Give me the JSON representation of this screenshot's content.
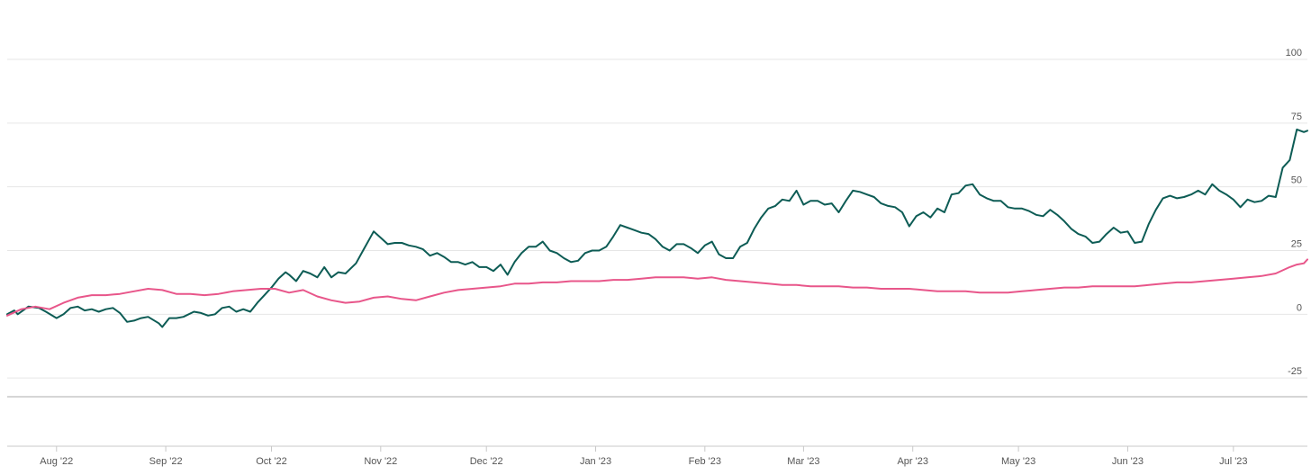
{
  "chart_data": {
    "type": "line",
    "grid": true,
    "ylim": [
      -32,
      112
    ],
    "y_ticks": [
      -25,
      0,
      25,
      50,
      75,
      100
    ],
    "y_tick_labels": [
      "-25",
      "0",
      "25",
      "50",
      "75",
      "100"
    ],
    "x_tick_labels": [
      "Aug '22",
      "Sep '22",
      "Oct '22",
      "Nov '22",
      "Dec '22",
      "Jan '23",
      "Feb '23",
      "Mar '23",
      "Apr '23",
      "May '23",
      "Jun '23",
      "Jul '23"
    ],
    "x_tick_dates": [
      "2022-08-01",
      "2022-09-01",
      "2022-10-01",
      "2022-11-01",
      "2022-12-01",
      "2023-01-01",
      "2023-02-01",
      "2023-03-01",
      "2023-04-01",
      "2023-05-01",
      "2023-06-01",
      "2023-07-01"
    ],
    "x_range": [
      "2022-07-18",
      "2023-07-22"
    ],
    "series": [
      {
        "color": "#0d5c55",
        "points": [
          [
            "2022-07-18",
            0
          ],
          [
            "2022-07-20",
            1.5
          ],
          [
            "2022-07-21",
            0
          ],
          [
            "2022-07-24",
            3
          ],
          [
            "2022-07-27",
            2.5
          ],
          [
            "2022-07-29",
            1
          ],
          [
            "2022-08-01",
            -1.5
          ],
          [
            "2022-08-03",
            0
          ],
          [
            "2022-08-05",
            2.5
          ],
          [
            "2022-08-07",
            3
          ],
          [
            "2022-08-09",
            1.5
          ],
          [
            "2022-08-11",
            2
          ],
          [
            "2022-08-13",
            1
          ],
          [
            "2022-08-15",
            2
          ],
          [
            "2022-08-17",
            2.5
          ],
          [
            "2022-08-19",
            0.5
          ],
          [
            "2022-08-21",
            -3
          ],
          [
            "2022-08-23",
            -2.5
          ],
          [
            "2022-08-25",
            -1.5
          ],
          [
            "2022-08-27",
            -1
          ],
          [
            "2022-08-30",
            -3.5
          ],
          [
            "2022-08-31",
            -5
          ],
          [
            "2022-09-02",
            -1.5
          ],
          [
            "2022-09-04",
            -1.5
          ],
          [
            "2022-09-06",
            -1
          ],
          [
            "2022-09-09",
            1
          ],
          [
            "2022-09-11",
            0.5
          ],
          [
            "2022-09-13",
            -0.5
          ],
          [
            "2022-09-15",
            0
          ],
          [
            "2022-09-17",
            2.5
          ],
          [
            "2022-09-19",
            3
          ],
          [
            "2022-09-21",
            1
          ],
          [
            "2022-09-23",
            2
          ],
          [
            "2022-09-25",
            1
          ],
          [
            "2022-09-27",
            4.5
          ],
          [
            "2022-09-29",
            7.5
          ],
          [
            "2022-10-01",
            10.5
          ],
          [
            "2022-10-03",
            14
          ],
          [
            "2022-10-05",
            16.5
          ],
          [
            "2022-10-06",
            15.5
          ],
          [
            "2022-10-08",
            13
          ],
          [
            "2022-10-10",
            17
          ],
          [
            "2022-10-12",
            16
          ],
          [
            "2022-10-14",
            14.5
          ],
          [
            "2022-10-16",
            18.5
          ],
          [
            "2022-10-18",
            14.5
          ],
          [
            "2022-10-20",
            16.5
          ],
          [
            "2022-10-22",
            16
          ],
          [
            "2022-10-25",
            20
          ],
          [
            "2022-10-27",
            25
          ],
          [
            "2022-10-29",
            30
          ],
          [
            "2022-10-30",
            32.5
          ],
          [
            "2022-11-01",
            30
          ],
          [
            "2022-11-03",
            27.5
          ],
          [
            "2022-11-05",
            28
          ],
          [
            "2022-11-07",
            28
          ],
          [
            "2022-11-09",
            27
          ],
          [
            "2022-11-11",
            26.5
          ],
          [
            "2022-11-13",
            25.5
          ],
          [
            "2022-11-15",
            23
          ],
          [
            "2022-11-17",
            24
          ],
          [
            "2022-11-19",
            22.5
          ],
          [
            "2022-11-21",
            20.5
          ],
          [
            "2022-11-23",
            20.5
          ],
          [
            "2022-11-25",
            19.5
          ],
          [
            "2022-11-27",
            20.5
          ],
          [
            "2022-11-29",
            18.5
          ],
          [
            "2022-12-01",
            18.5
          ],
          [
            "2022-12-03",
            17
          ],
          [
            "2022-12-05",
            19.5
          ],
          [
            "2022-12-07",
            15.5
          ],
          [
            "2022-12-09",
            20.5
          ],
          [
            "2022-12-11",
            24
          ],
          [
            "2022-12-13",
            26.5
          ],
          [
            "2022-12-15",
            26.5
          ],
          [
            "2022-12-17",
            28.5
          ],
          [
            "2022-12-19",
            25
          ],
          [
            "2022-12-21",
            24
          ],
          [
            "2022-12-23",
            22
          ],
          [
            "2022-12-25",
            20.5
          ],
          [
            "2022-12-27",
            21
          ],
          [
            "2022-12-29",
            24
          ],
          [
            "2022-12-31",
            25
          ],
          [
            "2023-01-02",
            25
          ],
          [
            "2023-01-04",
            26.5
          ],
          [
            "2023-01-06",
            30.5
          ],
          [
            "2023-01-08",
            35
          ],
          [
            "2023-01-10",
            34
          ],
          [
            "2023-01-12",
            33
          ],
          [
            "2023-01-14",
            32
          ],
          [
            "2023-01-16",
            31.5
          ],
          [
            "2023-01-18",
            29.5
          ],
          [
            "2023-01-20",
            26.5
          ],
          [
            "2023-01-22",
            25
          ],
          [
            "2023-01-24",
            27.5
          ],
          [
            "2023-01-26",
            27.5
          ],
          [
            "2023-01-28",
            26
          ],
          [
            "2023-01-30",
            24
          ],
          [
            "2023-02-01",
            27
          ],
          [
            "2023-02-03",
            28.5
          ],
          [
            "2023-02-05",
            23.5
          ],
          [
            "2023-02-07",
            22
          ],
          [
            "2023-02-09",
            22
          ],
          [
            "2023-02-11",
            26.5
          ],
          [
            "2023-02-13",
            28
          ],
          [
            "2023-02-15",
            33.5
          ],
          [
            "2023-02-17",
            38
          ],
          [
            "2023-02-19",
            41.5
          ],
          [
            "2023-02-21",
            42.5
          ],
          [
            "2023-02-23",
            45
          ],
          [
            "2023-02-25",
            44.5
          ],
          [
            "2023-02-27",
            48.5
          ],
          [
            "2023-03-01",
            43
          ],
          [
            "2023-03-03",
            44.5
          ],
          [
            "2023-03-05",
            44.5
          ],
          [
            "2023-03-07",
            43
          ],
          [
            "2023-03-09",
            43.5
          ],
          [
            "2023-03-11",
            40
          ],
          [
            "2023-03-13",
            44.5
          ],
          [
            "2023-03-15",
            48.5
          ],
          [
            "2023-03-17",
            48
          ],
          [
            "2023-03-19",
            47
          ],
          [
            "2023-03-21",
            46
          ],
          [
            "2023-03-23",
            43.5
          ],
          [
            "2023-03-25",
            42.5
          ],
          [
            "2023-03-27",
            42
          ],
          [
            "2023-03-29",
            40
          ],
          [
            "2023-03-31",
            34.5
          ],
          [
            "2023-04-02",
            38.5
          ],
          [
            "2023-04-04",
            40
          ],
          [
            "2023-04-06",
            38
          ],
          [
            "2023-04-08",
            41.5
          ],
          [
            "2023-04-10",
            40
          ],
          [
            "2023-04-12",
            47
          ],
          [
            "2023-04-14",
            47.5
          ],
          [
            "2023-04-16",
            50.5
          ],
          [
            "2023-04-18",
            51
          ],
          [
            "2023-04-20",
            47
          ],
          [
            "2023-04-22",
            45.5
          ],
          [
            "2023-04-24",
            44.5
          ],
          [
            "2023-04-26",
            44.5
          ],
          [
            "2023-04-28",
            42
          ],
          [
            "2023-04-30",
            41.5
          ],
          [
            "2023-05-02",
            41.5
          ],
          [
            "2023-05-04",
            40.5
          ],
          [
            "2023-05-06",
            39
          ],
          [
            "2023-05-08",
            38.5
          ],
          [
            "2023-05-10",
            41
          ],
          [
            "2023-05-12",
            39
          ],
          [
            "2023-05-14",
            36.5
          ],
          [
            "2023-05-16",
            33.5
          ],
          [
            "2023-05-18",
            31.5
          ],
          [
            "2023-05-20",
            30.5
          ],
          [
            "2023-05-22",
            28
          ],
          [
            "2023-05-24",
            28.5
          ],
          [
            "2023-05-26",
            31.5
          ],
          [
            "2023-05-28",
            34
          ],
          [
            "2023-05-30",
            32
          ],
          [
            "2023-06-01",
            32.5
          ],
          [
            "2023-06-03",
            28
          ],
          [
            "2023-06-05",
            28.5
          ],
          [
            "2023-06-07",
            35.5
          ],
          [
            "2023-06-09",
            41
          ],
          [
            "2023-06-11",
            45.5
          ],
          [
            "2023-06-13",
            46.5
          ],
          [
            "2023-06-15",
            45.5
          ],
          [
            "2023-06-17",
            46
          ],
          [
            "2023-06-19",
            47
          ],
          [
            "2023-06-21",
            48.5
          ],
          [
            "2023-06-23",
            47
          ],
          [
            "2023-06-25",
            51
          ],
          [
            "2023-06-27",
            48.5
          ],
          [
            "2023-06-29",
            47
          ],
          [
            "2023-07-01",
            45
          ],
          [
            "2023-07-03",
            42
          ],
          [
            "2023-07-05",
            45
          ],
          [
            "2023-07-07",
            44
          ],
          [
            "2023-07-09",
            44.5
          ],
          [
            "2023-07-11",
            46.5
          ],
          [
            "2023-07-13",
            46
          ],
          [
            "2023-07-15",
            57.5
          ],
          [
            "2023-07-17",
            60.5
          ],
          [
            "2023-07-19",
            72.5
          ],
          [
            "2023-07-21",
            71.5
          ],
          [
            "2023-07-22",
            72
          ]
        ]
      },
      {
        "color": "#e8568a",
        "points": [
          [
            "2022-07-18",
            -0.5
          ],
          [
            "2022-07-22",
            2
          ],
          [
            "2022-07-26",
            3
          ],
          [
            "2022-07-30",
            2
          ],
          [
            "2022-08-03",
            4.5
          ],
          [
            "2022-08-07",
            6.5
          ],
          [
            "2022-08-11",
            7.5
          ],
          [
            "2022-08-15",
            7.5
          ],
          [
            "2022-08-19",
            8
          ],
          [
            "2022-08-23",
            9
          ],
          [
            "2022-08-27",
            10
          ],
          [
            "2022-08-31",
            9.5
          ],
          [
            "2022-09-04",
            8
          ],
          [
            "2022-09-08",
            8
          ],
          [
            "2022-09-12",
            7.5
          ],
          [
            "2022-09-16",
            8
          ],
          [
            "2022-09-20",
            9
          ],
          [
            "2022-09-24",
            9.5
          ],
          [
            "2022-09-28",
            10
          ],
          [
            "2022-10-02",
            10
          ],
          [
            "2022-10-06",
            8.5
          ],
          [
            "2022-10-10",
            9.5
          ],
          [
            "2022-10-14",
            7
          ],
          [
            "2022-10-18",
            5.5
          ],
          [
            "2022-10-22",
            4.5
          ],
          [
            "2022-10-26",
            5
          ],
          [
            "2022-10-30",
            6.5
          ],
          [
            "2022-11-03",
            7
          ],
          [
            "2022-11-07",
            6
          ],
          [
            "2022-11-11",
            5.5
          ],
          [
            "2022-11-15",
            7
          ],
          [
            "2022-11-19",
            8.5
          ],
          [
            "2022-11-23",
            9.5
          ],
          [
            "2022-11-27",
            10
          ],
          [
            "2022-12-01",
            10.5
          ],
          [
            "2022-12-05",
            11
          ],
          [
            "2022-12-09",
            12
          ],
          [
            "2022-12-13",
            12
          ],
          [
            "2022-12-17",
            12.5
          ],
          [
            "2022-12-21",
            12.5
          ],
          [
            "2022-12-25",
            13
          ],
          [
            "2022-12-29",
            13
          ],
          [
            "2023-01-02",
            13
          ],
          [
            "2023-01-06",
            13.5
          ],
          [
            "2023-01-10",
            13.5
          ],
          [
            "2023-01-14",
            14
          ],
          [
            "2023-01-18",
            14.5
          ],
          [
            "2023-01-22",
            14.5
          ],
          [
            "2023-01-26",
            14.5
          ],
          [
            "2023-01-30",
            14
          ],
          [
            "2023-02-03",
            14.5
          ],
          [
            "2023-02-07",
            13.5
          ],
          [
            "2023-02-11",
            13
          ],
          [
            "2023-02-15",
            12.5
          ],
          [
            "2023-02-19",
            12
          ],
          [
            "2023-02-23",
            11.5
          ],
          [
            "2023-02-27",
            11.5
          ],
          [
            "2023-03-03",
            11
          ],
          [
            "2023-03-07",
            11
          ],
          [
            "2023-03-11",
            11
          ],
          [
            "2023-03-15",
            10.5
          ],
          [
            "2023-03-19",
            10.5
          ],
          [
            "2023-03-23",
            10
          ],
          [
            "2023-03-27",
            10
          ],
          [
            "2023-03-31",
            10
          ],
          [
            "2023-04-04",
            9.5
          ],
          [
            "2023-04-08",
            9
          ],
          [
            "2023-04-12",
            9
          ],
          [
            "2023-04-16",
            9
          ],
          [
            "2023-04-20",
            8.5
          ],
          [
            "2023-04-24",
            8.5
          ],
          [
            "2023-04-28",
            8.5
          ],
          [
            "2023-05-02",
            9
          ],
          [
            "2023-05-06",
            9.5
          ],
          [
            "2023-05-10",
            10
          ],
          [
            "2023-05-14",
            10.5
          ],
          [
            "2023-05-18",
            10.5
          ],
          [
            "2023-05-22",
            11
          ],
          [
            "2023-05-26",
            11
          ],
          [
            "2023-05-30",
            11
          ],
          [
            "2023-06-03",
            11
          ],
          [
            "2023-06-07",
            11.5
          ],
          [
            "2023-06-11",
            12
          ],
          [
            "2023-06-15",
            12.5
          ],
          [
            "2023-06-19",
            12.5
          ],
          [
            "2023-06-23",
            13
          ],
          [
            "2023-06-27",
            13.5
          ],
          [
            "2023-07-01",
            14
          ],
          [
            "2023-07-05",
            14.5
          ],
          [
            "2023-07-09",
            15
          ],
          [
            "2023-07-13",
            16
          ],
          [
            "2023-07-17",
            18.5
          ],
          [
            "2023-07-19",
            19.5
          ],
          [
            "2023-07-21",
            20
          ],
          [
            "2023-07-22",
            21.5
          ]
        ]
      }
    ]
  },
  "colors": {
    "gridline": "#e6e6e6",
    "axis_line": "#c8c8c8",
    "tick_label": "#555555"
  }
}
